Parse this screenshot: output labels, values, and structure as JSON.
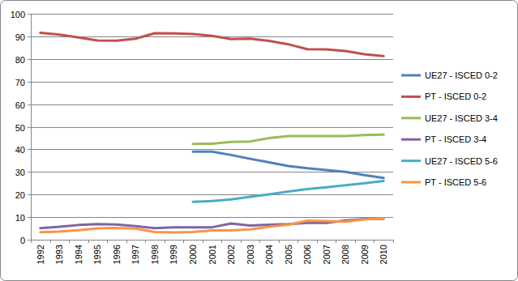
{
  "chart_data": {
    "type": "line",
    "categories": [
      "1992",
      "1993",
      "1994",
      "1995",
      "1996",
      "1997",
      "1998",
      "1999",
      "2000",
      "2001",
      "2002",
      "2003",
      "2004",
      "2005",
      "2006",
      "2007",
      "2008",
      "2009",
      "2010"
    ],
    "ylim": [
      0,
      100
    ],
    "yticks": [
      0,
      10,
      20,
      30,
      40,
      50,
      60,
      70,
      80,
      90,
      100
    ],
    "grid": true,
    "legend": "right",
    "series": [
      {
        "name": "UE27 - ISCED 0-2",
        "color": "#4f81bd",
        "values": [
          null,
          null,
          null,
          null,
          null,
          null,
          null,
          null,
          39.0,
          39.0,
          37.5,
          35.8,
          34.2,
          32.6,
          31.6,
          30.8,
          30.0,
          28.6,
          27.3
        ]
      },
      {
        "name": "PT - ISCED 0-2",
        "color": "#c0504d",
        "values": [
          91.6,
          90.8,
          89.5,
          88.2,
          88.1,
          89.0,
          91.4,
          91.3,
          91.0,
          90.2,
          88.8,
          89.0,
          88.0,
          86.5,
          84.3,
          84.2,
          83.5,
          82.1,
          81.3
        ]
      },
      {
        "name": "UE27 - ISCED 3-4",
        "color": "#9bbb59",
        "values": [
          null,
          null,
          null,
          null,
          null,
          null,
          null,
          null,
          42.4,
          42.5,
          43.3,
          43.5,
          45.0,
          45.9,
          45.9,
          45.9,
          45.9,
          46.3,
          46.5
        ]
      },
      {
        "name": "PT - ISCED 3-4",
        "color": "#8064a2",
        "values": [
          5.1,
          5.7,
          6.5,
          6.9,
          6.7,
          6.0,
          5.1,
          5.5,
          5.5,
          5.5,
          7.2,
          6.3,
          6.6,
          6.9,
          7.4,
          7.4,
          8.5,
          9.1,
          9.2
        ]
      },
      {
        "name": "UE27 - ISCED 5-6",
        "color": "#4bacc6",
        "values": [
          null,
          null,
          null,
          null,
          null,
          null,
          null,
          null,
          16.8,
          17.1,
          17.8,
          19.0,
          20.1,
          21.3,
          22.4,
          23.2,
          24.1,
          25.0,
          26.0
        ]
      },
      {
        "name": "PT - ISCED 5-6",
        "color": "#f79646",
        "values": [
          3.3,
          3.6,
          4.2,
          5.0,
          5.2,
          4.9,
          3.4,
          3.2,
          3.4,
          4.1,
          4.1,
          4.6,
          5.7,
          6.6,
          8.4,
          8.2,
          8.0,
          9.0,
          9.5
        ]
      }
    ]
  }
}
